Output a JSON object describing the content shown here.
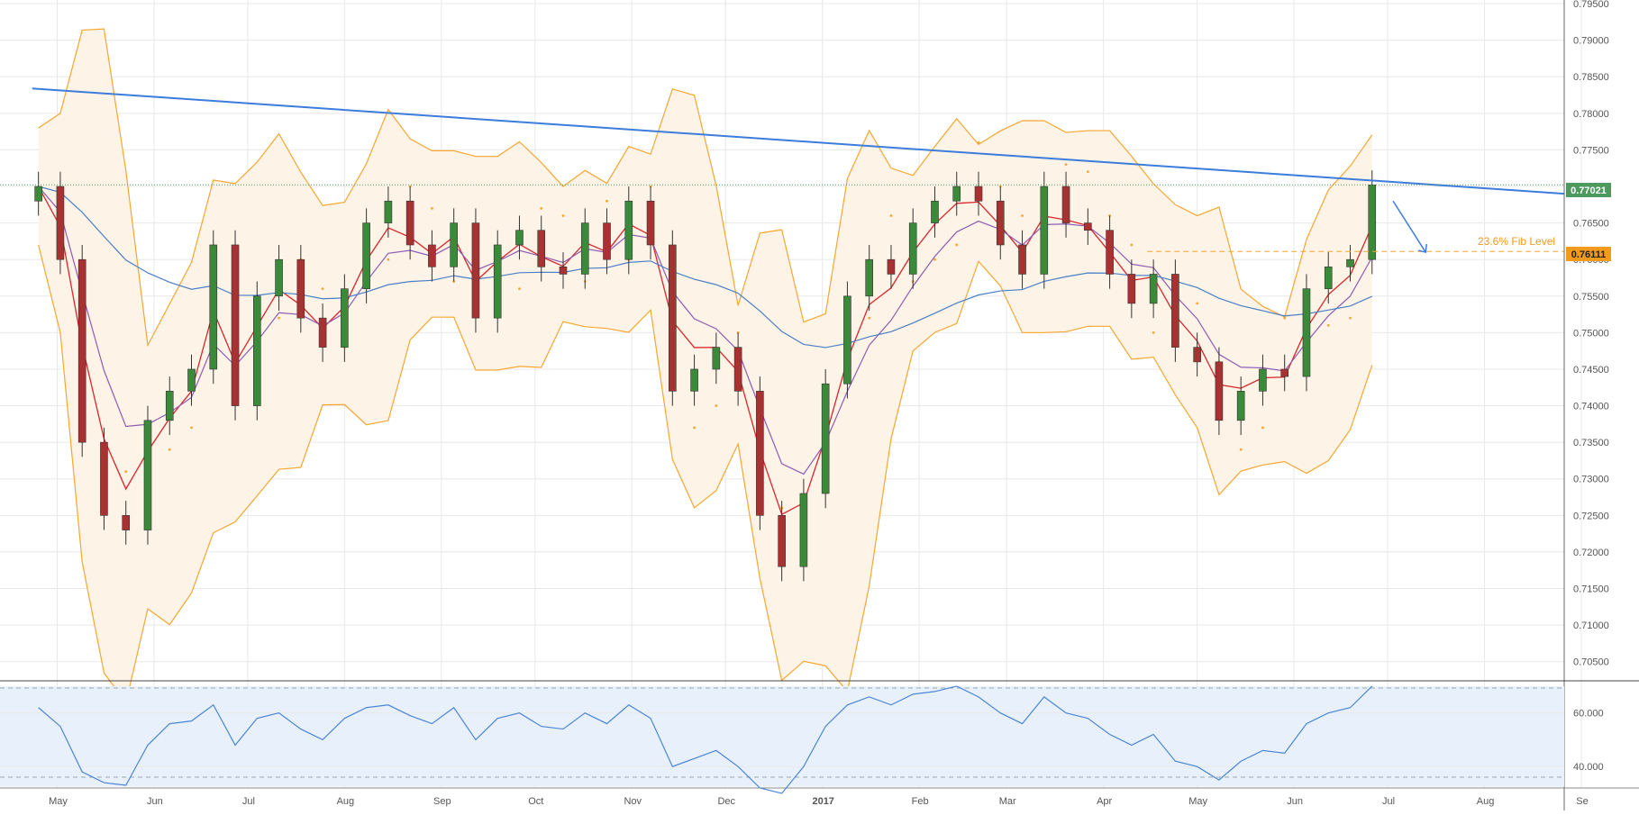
{
  "colors": {
    "background": "#ffffff",
    "grid": "#e8e8e8",
    "candle_up": "#3a8a3a",
    "candle_down": "#a83232",
    "bollinger": "#f7a630",
    "bollinger_fill": "#fdf3e6",
    "ema_fast": "#d9262c",
    "ema_mid": "#8e5cb5",
    "ma_slow": "#4a7fc8",
    "parabolic_sar": "#f7a630",
    "trendline": "#3c7ddb",
    "fib_line": "#f7a630",
    "price_tag": "#4c9a5e",
    "fib_tag": "#f19a1c",
    "rsi_line": "#4a86d8",
    "rsi_band": "#e8f0fb"
  },
  "chart_data": {
    "type": "candlestick",
    "x": [
      "2016-04-25",
      "2016-05-02",
      "2016-05-09",
      "2016-05-16",
      "2016-05-23",
      "2016-05-30",
      "2016-06-06",
      "2016-06-13",
      "2016-06-20",
      "2016-06-27",
      "2016-07-04",
      "2016-07-11",
      "2016-07-18",
      "2016-07-25",
      "2016-08-01",
      "2016-08-08",
      "2016-08-15",
      "2016-08-22",
      "2016-08-29",
      "2016-09-05",
      "2016-09-12",
      "2016-09-19",
      "2016-09-26",
      "2016-10-03",
      "2016-10-10",
      "2016-10-17",
      "2016-10-24",
      "2016-10-31",
      "2016-11-07",
      "2016-11-14",
      "2016-11-21",
      "2016-11-28",
      "2016-12-05",
      "2016-12-12",
      "2016-12-19",
      "2016-12-26",
      "2017-01-02",
      "2017-01-09",
      "2017-01-16",
      "2017-01-23",
      "2017-01-30",
      "2017-02-06",
      "2017-02-13",
      "2017-02-20",
      "2017-02-27",
      "2017-03-06",
      "2017-03-13",
      "2017-03-20",
      "2017-03-27",
      "2017-04-03",
      "2017-04-10",
      "2017-04-17",
      "2017-04-24",
      "2017-05-01",
      "2017-05-08",
      "2017-05-15",
      "2017-05-22",
      "2017-05-29",
      "2017-06-05",
      "2017-06-12",
      "2017-06-19",
      "2017-06-26"
    ],
    "close": [
      0.77,
      0.76,
      0.735,
      0.725,
      0.723,
      0.738,
      0.742,
      0.745,
      0.762,
      0.74,
      0.755,
      0.76,
      0.752,
      0.748,
      0.756,
      0.765,
      0.768,
      0.762,
      0.759,
      0.765,
      0.752,
      0.762,
      0.764,
      0.759,
      0.758,
      0.765,
      0.76,
      0.768,
      0.762,
      0.742,
      0.745,
      0.748,
      0.742,
      0.725,
      0.718,
      0.728,
      0.743,
      0.755,
      0.76,
      0.758,
      0.765,
      0.768,
      0.77,
      0.768,
      0.762,
      0.758,
      0.77,
      0.765,
      0.764,
      0.758,
      0.754,
      0.758,
      0.748,
      0.746,
      0.738,
      0.742,
      0.745,
      0.744,
      0.756,
      0.759,
      0.76,
      0.7702
    ],
    "rsi": [
      62,
      55,
      38,
      34,
      33,
      48,
      56,
      57,
      63,
      48,
      58,
      60,
      54,
      50,
      58,
      62,
      63,
      59,
      56,
      62,
      50,
      58,
      60,
      55,
      54,
      60,
      56,
      63,
      58,
      40,
      43,
      46,
      40,
      32,
      30,
      40,
      55,
      63,
      66,
      63,
      67,
      68,
      70,
      66,
      60,
      56,
      66,
      60,
      58,
      52,
      48,
      52,
      42,
      40,
      35,
      42,
      46,
      45,
      56,
      60,
      62,
      70
    ],
    "y_range": [
      0.7025,
      0.7955
    ],
    "rsi_range": [
      32,
      72
    ],
    "annotations": {
      "fib_label": "23.6% Fib Level",
      "fib_value": 0.76111,
      "last_price": 0.77021
    }
  },
  "axis": {
    "y_ticks": [
      "0.79500",
      "0.79000",
      "0.78500",
      "0.78000",
      "0.77500",
      "0.77000",
      "0.76500",
      "0.76000",
      "0.75500",
      "0.75000",
      "0.74500",
      "0.74000",
      "0.73500",
      "0.73000",
      "0.72500",
      "0.72000",
      "0.71500",
      "0.71000",
      "0.70500"
    ],
    "rsi_ticks": [
      "60.000",
      "40.000"
    ],
    "x_ticks": [
      "May",
      "Jun",
      "Jul",
      "Aug",
      "Sep",
      "Oct",
      "Nov",
      "Dec",
      "2017",
      "Feb",
      "Mar",
      "Apr",
      "May",
      "Jun",
      "Jul",
      "Aug",
      "Se"
    ],
    "x_tick_bold": "2017"
  },
  "labels": {
    "fib_label": "23.6% Fib Level",
    "last_price_tag": "0.77021",
    "fib_price_tag": "0.76111"
  }
}
